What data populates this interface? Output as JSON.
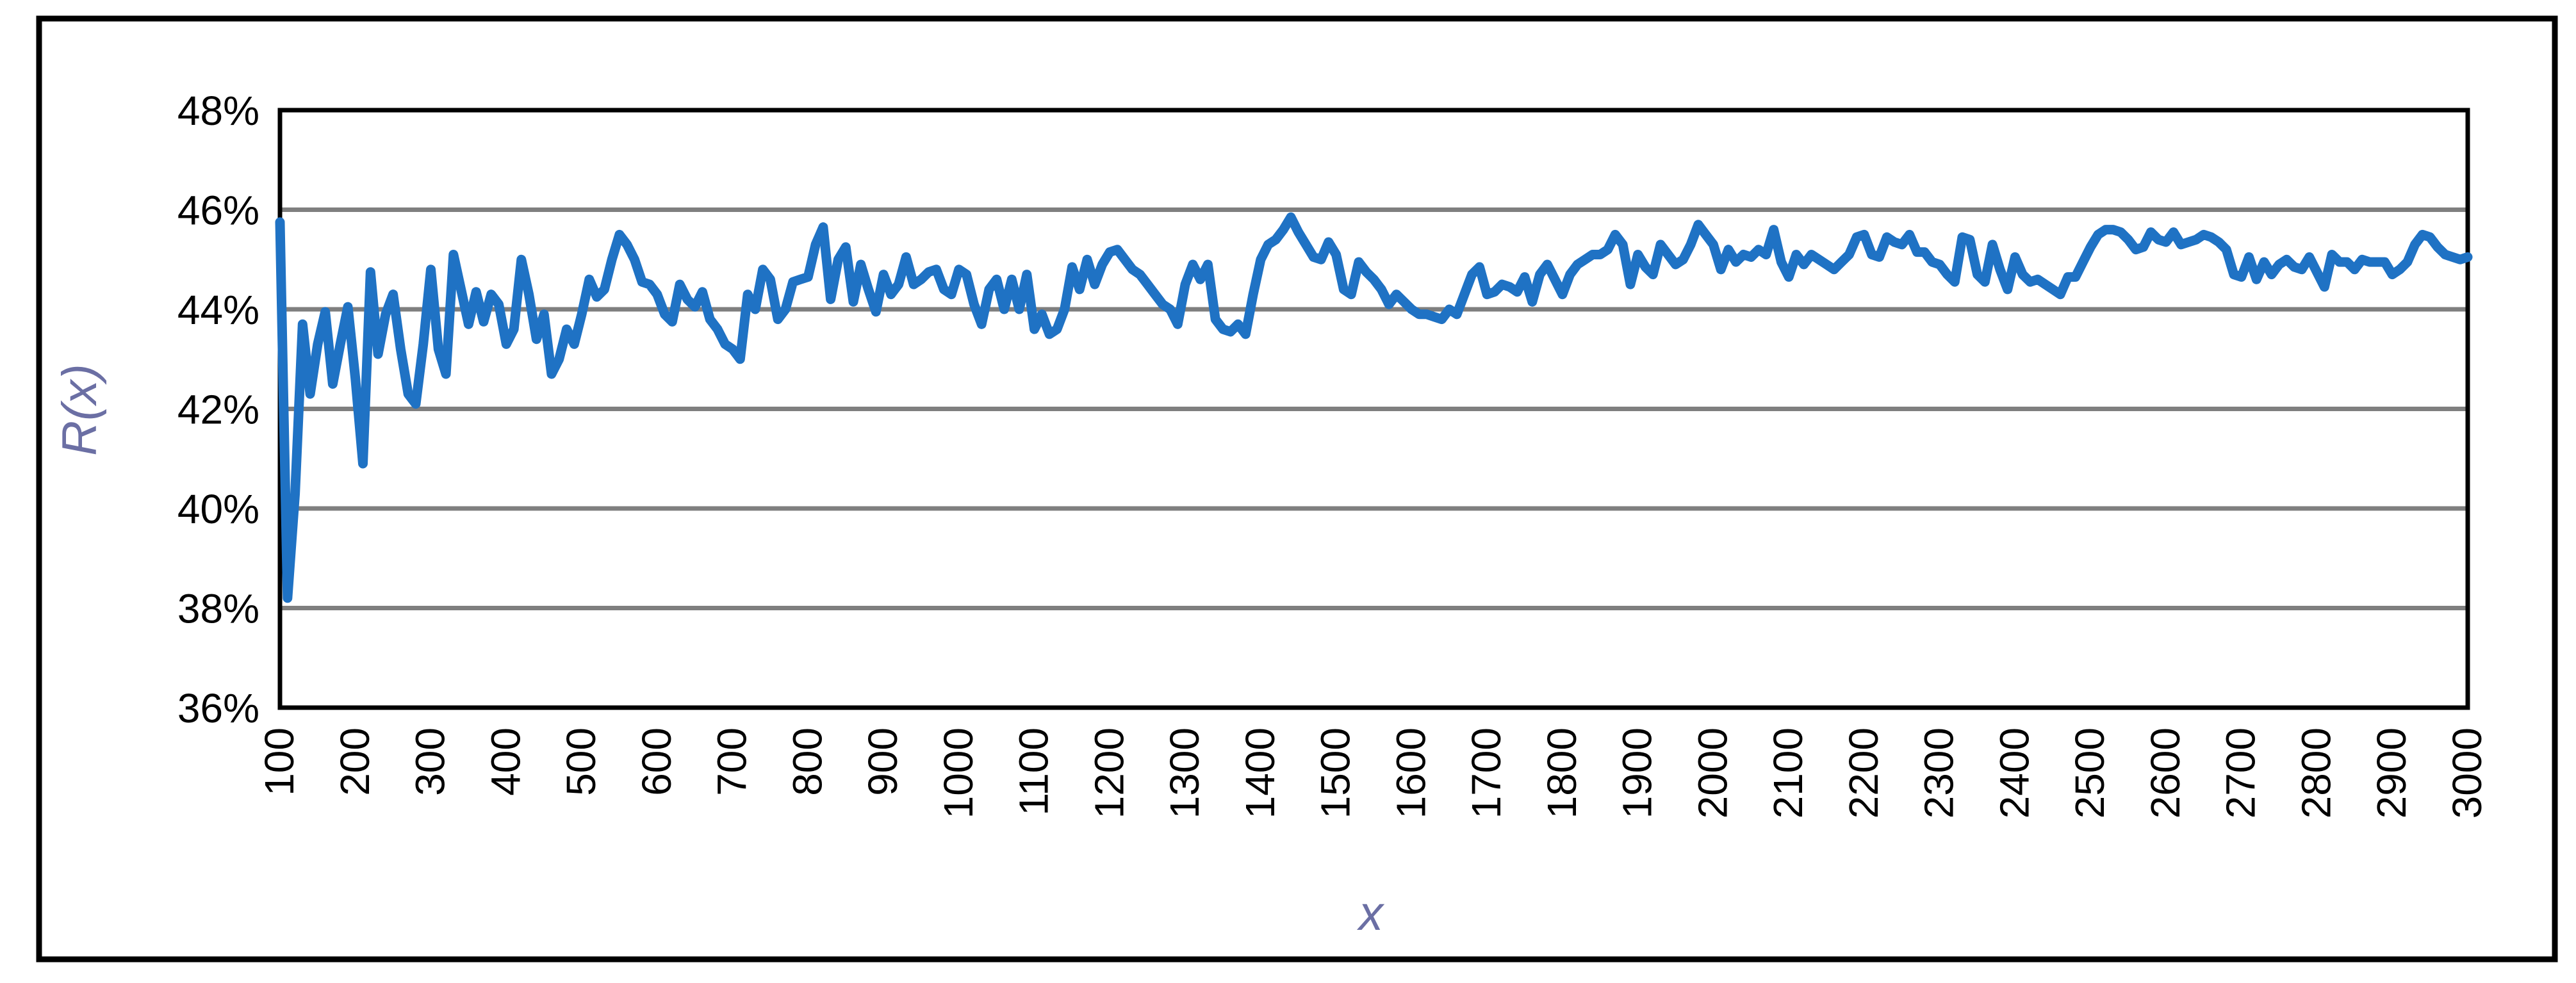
{
  "colors": {
    "series": "#1F72C4",
    "gridline": "#7F7F7F",
    "plot_border": "#000000",
    "outer_frame": "#000000",
    "axis_title": "#6B6FA4",
    "tick_text": "#000000",
    "background": "#FFFFFF"
  },
  "chart_data": {
    "type": "line",
    "title": "",
    "xlabel": "x",
    "ylabel": "R(x)",
    "xlim": [
      100,
      3000
    ],
    "ylim": [
      36,
      48
    ],
    "grid": "horizontal",
    "legend": "none",
    "y_tick_values": [
      36,
      38,
      40,
      42,
      44,
      46,
      48
    ],
    "y_tick_labels": [
      "36%",
      "38%",
      "40%",
      "42%",
      "44%",
      "46%",
      "48%"
    ],
    "x_tick_values": [
      100,
      200,
      300,
      400,
      500,
      600,
      700,
      800,
      900,
      1000,
      1100,
      1200,
      1300,
      1400,
      1500,
      1600,
      1700,
      1800,
      1900,
      2000,
      2100,
      2200,
      2300,
      2400,
      2500,
      2600,
      2700,
      2800,
      2900,
      3000
    ],
    "x_tick_labels": [
      "100",
      "200",
      "300",
      "400",
      "500",
      "600",
      "700",
      "800",
      "900",
      "1000",
      "1100",
      "1200",
      "1300",
      "1400",
      "1500",
      "1600",
      "1700",
      "1800",
      "1900",
      "2000",
      "2100",
      "2200",
      "2300",
      "2400",
      "2500",
      "2600",
      "2700",
      "2800",
      "2900",
      "3000"
    ],
    "x": [
      100,
      110,
      120,
      130,
      140,
      150,
      160,
      170,
      180,
      190,
      200,
      210,
      220,
      230,
      240,
      250,
      260,
      270,
      280,
      290,
      300,
      310,
      320,
      330,
      340,
      350,
      360,
      370,
      380,
      390,
      400,
      410,
      420,
      430,
      440,
      450,
      460,
      470,
      480,
      490,
      500,
      510,
      520,
      530,
      540,
      550,
      560,
      570,
      580,
      590,
      600,
      610,
      620,
      630,
      640,
      650,
      660,
      670,
      680,
      690,
      700,
      710,
      720,
      730,
      740,
      750,
      760,
      770,
      780,
      790,
      800,
      810,
      820,
      830,
      840,
      850,
      860,
      870,
      880,
      890,
      900,
      910,
      920,
      930,
      940,
      950,
      960,
      970,
      980,
      990,
      1000,
      1010,
      1020,
      1030,
      1040,
      1050,
      1060,
      1070,
      1080,
      1090,
      1100,
      1110,
      1120,
      1130,
      1140,
      1150,
      1160,
      1170,
      1180,
      1190,
      1200,
      1210,
      1220,
      1230,
      1240,
      1250,
      1260,
      1270,
      1280,
      1290,
      1300,
      1310,
      1320,
      1330,
      1340,
      1350,
      1360,
      1370,
      1380,
      1390,
      1400,
      1410,
      1420,
      1430,
      1440,
      1450,
      1460,
      1470,
      1480,
      1490,
      1500,
      1510,
      1520,
      1530,
      1540,
      1550,
      1560,
      1570,
      1580,
      1590,
      1600,
      1610,
      1620,
      1630,
      1640,
      1650,
      1660,
      1670,
      1680,
      1690,
      1700,
      1710,
      1720,
      1730,
      1740,
      1750,
      1760,
      1770,
      1780,
      1790,
      1800,
      1810,
      1820,
      1830,
      1840,
      1850,
      1860,
      1870,
      1880,
      1890,
      1900,
      1910,
      1920,
      1930,
      1940,
      1950,
      1960,
      1970,
      1980,
      1990,
      2000,
      2010,
      2020,
      2030,
      2040,
      2050,
      2060,
      2070,
      2080,
      2090,
      2100,
      2110,
      2120,
      2130,
      2140,
      2150,
      2160,
      2170,
      2180,
      2190,
      2200,
      2210,
      2220,
      2230,
      2240,
      2250,
      2260,
      2270,
      2280,
      2290,
      2300,
      2310,
      2320,
      2330,
      2340,
      2350,
      2360,
      2370,
      2380,
      2390,
      2400,
      2410,
      2420,
      2430,
      2440,
      2450,
      2460,
      2470,
      2480,
      2490,
      2500,
      2510,
      2520,
      2530,
      2540,
      2550,
      2560,
      2570,
      2580,
      2590,
      2600,
      2610,
      2620,
      2630,
      2640,
      2650,
      2660,
      2670,
      2680,
      2690,
      2700,
      2710,
      2720,
      2730,
      2740,
      2750,
      2760,
      2770,
      2780,
      2790,
      2800,
      2810,
      2820,
      2830,
      2840,
      2850,
      2860,
      2870,
      2880,
      2890,
      2900,
      2910,
      2920,
      2930,
      2940,
      2950,
      2960,
      2970,
      2980,
      2990,
      3000
    ],
    "values": [
      45.75,
      38.2,
      40.3,
      43.7,
      42.3,
      43.3,
      43.95,
      42.5,
      43.3,
      44.05,
      42.6,
      40.9,
      44.75,
      43.1,
      43.9,
      44.3,
      43.2,
      42.3,
      42.1,
      43.3,
      44.8,
      43.2,
      42.7,
      45.1,
      44.4,
      43.7,
      44.35,
      43.75,
      44.3,
      44.1,
      43.3,
      43.6,
      45.0,
      44.3,
      43.4,
      43.9,
      42.7,
      43.0,
      43.6,
      43.3,
      43.9,
      44.6,
      44.25,
      44.4,
      45.0,
      45.5,
      45.3,
      45.0,
      44.55,
      44.5,
      44.3,
      43.9,
      43.75,
      44.5,
      44.2,
      44.05,
      44.35,
      43.8,
      43.6,
      43.3,
      43.2,
      43.0,
      44.3,
      44.0,
      44.8,
      44.6,
      43.8,
      44.0,
      44.55,
      44.6,
      44.65,
      45.3,
      45.65,
      44.2,
      45.0,
      45.25,
      44.15,
      44.9,
      44.4,
      43.95,
      44.7,
      44.3,
      44.5,
      45.05,
      44.5,
      44.6,
      44.75,
      44.8,
      44.4,
      44.3,
      44.8,
      44.7,
      44.1,
      43.7,
      44.4,
      44.6,
      44.0,
      44.6,
      44.0,
      44.7,
      43.6,
      43.9,
      43.5,
      43.6,
      44.0,
      44.85,
      44.4,
      45.0,
      44.5,
      44.9,
      45.15,
      45.2,
      45.0,
      44.8,
      44.7,
      44.5,
      44.3,
      44.1,
      44.0,
      43.7,
      44.5,
      44.9,
      44.6,
      44.9,
      43.8,
      43.6,
      43.55,
      43.7,
      43.5,
      44.3,
      45.0,
      45.3,
      45.4,
      45.6,
      45.85,
      45.55,
      45.3,
      45.05,
      45.0,
      45.35,
      45.1,
      44.4,
      44.3,
      44.95,
      44.75,
      44.6,
      44.4,
      44.1,
      44.3,
      44.15,
      44.0,
      43.9,
      43.9,
      43.85,
      43.8,
      44.0,
      43.9,
      44.3,
      44.7,
      44.85,
      44.3,
      44.35,
      44.5,
      44.45,
      44.35,
      44.65,
      44.15,
      44.7,
      44.9,
      44.6,
      44.3,
      44.7,
      44.9,
      45.0,
      45.1,
      45.1,
      45.2,
      45.5,
      45.3,
      44.5,
      45.1,
      44.85,
      44.7,
      45.3,
      45.1,
      44.9,
      45.0,
      45.3,
      45.7,
      45.5,
      45.3,
      44.8,
      45.2,
      44.95,
      45.1,
      45.05,
      45.2,
      45.1,
      45.6,
      44.95,
      44.65,
      45.1,
      44.9,
      45.1,
      45.0,
      44.9,
      44.8,
      44.95,
      45.1,
      45.45,
      45.5,
      45.1,
      45.05,
      45.45,
      45.35,
      45.3,
      45.5,
      45.15,
      45.15,
      44.95,
      44.9,
      44.7,
      44.55,
      45.45,
      45.4,
      44.7,
      44.55,
      45.3,
      44.8,
      44.4,
      45.05,
      44.7,
      44.55,
      44.6,
      44.5,
      44.4,
      44.3,
      44.65,
      44.65,
      44.95,
      45.25,
      45.5,
      45.6,
      45.6,
      45.55,
      45.4,
      45.2,
      45.25,
      45.55,
      45.4,
      45.35,
      45.55,
      45.3,
      45.35,
      45.4,
      45.5,
      45.45,
      45.35,
      45.2,
      44.7,
      44.65,
      45.05,
      44.6,
      44.95,
      44.7,
      44.9,
      45.0,
      44.85,
      44.8,
      45.05,
      44.75,
      44.45,
      45.1,
      44.95,
      44.95,
      44.8,
      45.0,
      44.95,
      44.95,
      44.95,
      44.7,
      44.8,
      44.95,
      45.3,
      45.5,
      45.45,
      45.25,
      45.1,
      45.05,
      45.0,
      45.05
    ]
  }
}
